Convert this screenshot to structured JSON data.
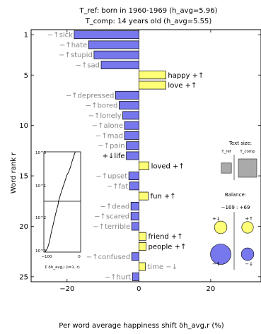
{
  "chart_data": {
    "type": "bar",
    "orientation": "horizontal",
    "title_line1": "T_ref: born in 1960-1969 (h_avg=5.96)",
    "title_line2": "T_comp: 14 years old (h_avg=5.55)",
    "xlabel": "Per word average happiness shift δh_avg,r (%)",
    "ylabel": "Word rank r",
    "xlim": [
      -30,
      34
    ],
    "ylim": [
      0.5,
      25.5
    ],
    "xticks": [
      -20,
      0,
      20
    ],
    "yticks": [
      1,
      5,
      10,
      15,
      20,
      25
    ],
    "colors": {
      "negative_bar": "#7777ee",
      "positive_bar": "#ffff77",
      "gray_text": "#888888",
      "black_text": "#000000"
    },
    "words": [
      {
        "rank": 1,
        "label": "−↑sick",
        "value": -18.0,
        "style": "gray"
      },
      {
        "rank": 2,
        "label": "−↑hate",
        "value": -14.0,
        "style": "gray"
      },
      {
        "rank": 3,
        "label": "−↑stupid",
        "value": -12.5,
        "style": "gray"
      },
      {
        "rank": 4,
        "label": "−↑sad",
        "value": -10.5,
        "style": "gray"
      },
      {
        "rank": 5,
        "label": "happy +↑",
        "value": 7.5,
        "style": "black"
      },
      {
        "rank": 6,
        "label": "love +↑",
        "value": 7.5,
        "style": "black"
      },
      {
        "rank": 7,
        "label": "−↑depressed",
        "value": -6.5,
        "style": "gray"
      },
      {
        "rank": 8,
        "label": "−↑bored",
        "value": -5.5,
        "style": "gray"
      },
      {
        "rank": 9,
        "label": "−↑lonely",
        "value": -4.5,
        "style": "gray"
      },
      {
        "rank": 10,
        "label": "−↑alone",
        "value": -4.0,
        "style": "gray"
      },
      {
        "rank": 11,
        "label": "−↑mad",
        "value": -4.0,
        "style": "gray"
      },
      {
        "rank": 12,
        "label": "−↑pain",
        "value": -3.5,
        "style": "gray"
      },
      {
        "rank": 13,
        "label": "+↓life",
        "value": -3.5,
        "style": "black"
      },
      {
        "rank": 14,
        "label": "loved +↑",
        "value": 2.8,
        "style": "black"
      },
      {
        "rank": 15,
        "label": "−↑upset",
        "value": -2.8,
        "style": "gray"
      },
      {
        "rank": 16,
        "label": "−↑fat",
        "value": -2.6,
        "style": "gray"
      },
      {
        "rank": 17,
        "label": "fun +↑",
        "value": 2.6,
        "style": "black"
      },
      {
        "rank": 18,
        "label": "−↑dead",
        "value": -2.2,
        "style": "gray"
      },
      {
        "rank": 19,
        "label": "−↑scared",
        "value": -2.2,
        "style": "gray"
      },
      {
        "rank": 20,
        "label": "−↑terrible",
        "value": -2.0,
        "style": "gray"
      },
      {
        "rank": 21,
        "label": "friend +↑",
        "value": 2.0,
        "style": "black"
      },
      {
        "rank": 22,
        "label": "people +↑",
        "value": 2.0,
        "style": "black"
      },
      {
        "rank": 23,
        "label": "−↑confused",
        "value": -2.0,
        "style": "gray"
      },
      {
        "rank": 24,
        "label": "time −↓",
        "value": 1.8,
        "style": "gray"
      },
      {
        "rank": 25,
        "label": "−↑hurt",
        "value": -1.8,
        "style": "gray"
      }
    ],
    "inset_cumulative": {
      "xlabel": "Σ δh_avg,i (i=1..r)",
      "xticks": [
        "−100",
        "0"
      ],
      "yticks": [
        "10^0",
        "10^1",
        "10^2",
        "10^3"
      ],
      "final_value": -100,
      "points": [
        [
          -10,
          1
        ],
        [
          -15,
          1.4
        ],
        [
          -20,
          2
        ],
        [
          -25,
          3
        ],
        [
          -30,
          4
        ],
        [
          -35,
          5
        ],
        [
          -40,
          7
        ],
        [
          -45,
          10
        ],
        [
          -50,
          14
        ],
        [
          -55,
          20
        ],
        [
          -60,
          30
        ],
        [
          -62,
          40
        ],
        [
          -66,
          55
        ],
        [
          -70,
          80
        ],
        [
          -73,
          110
        ],
        [
          -76,
          150
        ],
        [
          -80,
          220
        ],
        [
          -83,
          300
        ],
        [
          -86,
          420
        ],
        [
          -89,
          560
        ],
        [
          -92,
          700
        ],
        [
          -95,
          820
        ],
        [
          -98,
          920
        ],
        [
          -100,
          1000
        ]
      ],
      "horizontal_line_at_rank": 100
    },
    "text_size_legend": {
      "title": "Text size:",
      "labels": [
        "T_ref",
        "T_comp"
      ],
      "ref_relative_size": 0.55,
      "comp_relative_size": 1.0
    },
    "balance_legend": {
      "title": "Balance:",
      "values": "−169 : +69",
      "markers": [
        {
          "label": "+↓",
          "color": "#ffff77",
          "size": 0.35
        },
        {
          "label": "+↑",
          "color": "#ffff77",
          "size": 0.3
        },
        {
          "label": "−↑",
          "color": "#7777ee",
          "size": 0.75
        },
        {
          "label": "−↓",
          "color": "#7777ee",
          "size": 0.35
        }
      ]
    }
  }
}
